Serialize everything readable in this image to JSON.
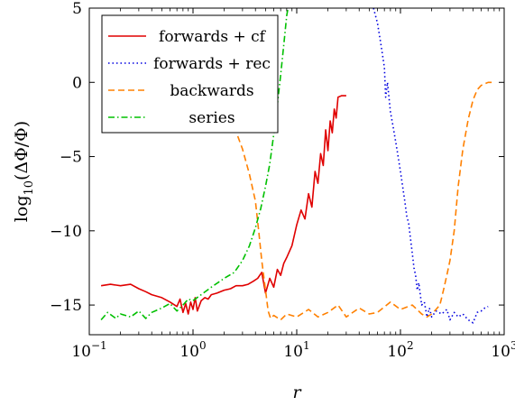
{
  "chart_data": {
    "type": "line",
    "title": "",
    "xlabel": "r",
    "ylabel": "log10(ΔΦ/Φ)",
    "x_scale": "log",
    "xlim": [
      0.1,
      1000
    ],
    "ylim": [
      -17,
      5
    ],
    "x_ticks": [
      {
        "value": 0.1,
        "base": "10",
        "exp": "−1"
      },
      {
        "value": 1,
        "base": "10",
        "exp": "0"
      },
      {
        "value": 10,
        "base": "10",
        "exp": "1"
      },
      {
        "value": 100,
        "base": "10",
        "exp": "2"
      },
      {
        "value": 1000,
        "base": "10",
        "exp": "3"
      }
    ],
    "y_ticks": [
      {
        "value": 5,
        "label": "5"
      },
      {
        "value": 0,
        "label": "0"
      },
      {
        "value": -5,
        "label": "−5"
      },
      {
        "value": -10,
        "label": "−10"
      },
      {
        "value": -15,
        "label": "−15"
      }
    ],
    "grid": false,
    "legend_position": "top-left",
    "series": [
      {
        "name": "forwards + cf",
        "color": "#e00000",
        "dash": "solid",
        "x": [
          0.13,
          0.16,
          0.2,
          0.25,
          0.3,
          0.35,
          0.4,
          0.5,
          0.6,
          0.7,
          0.75,
          0.8,
          0.85,
          0.9,
          0.95,
          1.0,
          1.05,
          1.1,
          1.2,
          1.3,
          1.4,
          1.5,
          1.7,
          2.0,
          2.3,
          2.6,
          3.0,
          3.4,
          3.8,
          4.2,
          4.6,
          5.0,
          5.5,
          6.0,
          6.5,
          7.0,
          7.5,
          8.0,
          9.0,
          10.0,
          11.0,
          12.0,
          13.0,
          14.0,
          15.0,
          16.0,
          17.0,
          18.0,
          19.0,
          20.0,
          21.0,
          22.0,
          23.0,
          24.0,
          25.0,
          27.0,
          30.0
        ],
        "y": [
          -13.7,
          -13.6,
          -13.7,
          -13.6,
          -13.9,
          -14.1,
          -14.3,
          -14.5,
          -14.8,
          -15.1,
          -14.6,
          -15.5,
          -14.9,
          -15.6,
          -14.8,
          -15.3,
          -14.5,
          -15.4,
          -14.7,
          -14.5,
          -14.6,
          -14.3,
          -14.2,
          -14.0,
          -13.9,
          -13.7,
          -13.7,
          -13.6,
          -13.4,
          -13.2,
          -12.8,
          -14.2,
          -13.2,
          -13.8,
          -12.6,
          -13.0,
          -12.2,
          -11.8,
          -11.0,
          -9.6,
          -8.6,
          -9.2,
          -7.5,
          -8.4,
          -6.0,
          -6.8,
          -4.8,
          -5.6,
          -3.2,
          -4.6,
          -2.6,
          -3.4,
          -1.8,
          -2.4,
          -1.0,
          -0.9,
          -0.9
        ]
      },
      {
        "name": "forwards + rec",
        "color": "#0000e0",
        "dash": "dotted",
        "x": [
          55,
          60,
          65,
          70,
          72,
          75,
          80,
          85,
          90,
          95,
          100,
          105,
          110,
          115,
          120,
          125,
          130,
          135,
          140,
          145,
          150,
          160,
          170,
          180,
          190,
          200,
          220,
          250,
          280,
          300,
          330,
          360,
          400,
          450,
          500,
          550,
          600,
          650,
          700
        ],
        "y": [
          5.0,
          4.0,
          2.5,
          1.0,
          -1.0,
          0.0,
          -2.0,
          -3.0,
          -4.0,
          -5.0,
          -6.0,
          -7.0,
          -8.0,
          -9.0,
          -9.5,
          -10.5,
          -11.5,
          -12.5,
          -13.0,
          -14.0,
          -13.5,
          -15.0,
          -14.8,
          -15.8,
          -15.2,
          -15.8,
          -15.4,
          -15.6,
          -15.3,
          -16.0,
          -15.5,
          -15.8,
          -15.6,
          -16.0,
          -16.2,
          -15.5,
          -15.4,
          -15.2,
          -15.1
        ]
      },
      {
        "name": "backwards",
        "color": "#ff8000",
        "dash": "dashed",
        "x": [
          2.5,
          3.0,
          3.5,
          4.0,
          4.3,
          4.6,
          5.0,
          5.3,
          5.6,
          6.0,
          7.0,
          8.0,
          10.0,
          13.0,
          16.0,
          20.0,
          25.0,
          30.0,
          40.0,
          50.0,
          60.0,
          80.0,
          100.0,
          130.0,
          160.0,
          180.0,
          200.0,
          220.0,
          240.0,
          260.0,
          280.0,
          300.0,
          330.0,
          360.0,
          400.0,
          450.0,
          500.0,
          550.0,
          600.0,
          700.0,
          800.0
        ],
        "y": [
          -3.0,
          -4.5,
          -6.2,
          -8.0,
          -10.0,
          -12.0,
          -14.0,
          -15.4,
          -15.9,
          -15.7,
          -16.0,
          -15.6,
          -15.8,
          -15.3,
          -15.8,
          -15.5,
          -15.0,
          -15.8,
          -15.2,
          -15.6,
          -15.5,
          -14.8,
          -15.3,
          -15.0,
          -15.6,
          -15.8,
          -15.6,
          -15.3,
          -15.0,
          -14.0,
          -13.0,
          -12.0,
          -10.0,
          -7.0,
          -4.5,
          -2.5,
          -1.2,
          -0.5,
          -0.2,
          0.0,
          0.0
        ]
      },
      {
        "name": "series",
        "color": "#00c000",
        "dash": "dashdot",
        "x": [
          0.13,
          0.15,
          0.18,
          0.2,
          0.25,
          0.3,
          0.35,
          0.4,
          0.5,
          0.6,
          0.7,
          0.8,
          0.9,
          1.0,
          1.2,
          1.5,
          2.0,
          2.5,
          3.0,
          3.5,
          4.0,
          4.5,
          5.0,
          5.5,
          6.0,
          6.5,
          7.0,
          7.5,
          8.0,
          9.0
        ],
        "y": [
          -16.0,
          -15.5,
          -15.9,
          -15.6,
          -15.8,
          -15.4,
          -15.9,
          -15.5,
          -15.2,
          -14.9,
          -15.4,
          -15.0,
          -14.6,
          -14.7,
          -14.3,
          -13.8,
          -13.2,
          -12.8,
          -12.0,
          -11.0,
          -9.8,
          -8.5,
          -7.0,
          -5.5,
          -3.5,
          -1.5,
          0.5,
          2.5,
          4.5,
          6.5
        ]
      }
    ]
  }
}
